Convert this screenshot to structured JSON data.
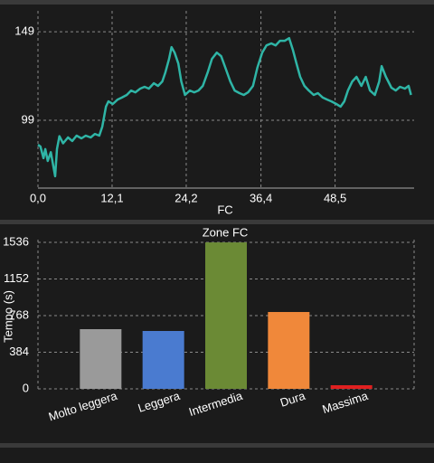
{
  "chart_data": [
    {
      "type": "line",
      "x_label": "FC",
      "series": [
        {
          "color": "#2fb5a6",
          "x": [
            0,
            0.4,
            0.9,
            1.2,
            1.6,
            2.1,
            2.4,
            2.8,
            3.1,
            3.5,
            4.1,
            4.9,
            5.6,
            6.3,
            7.1,
            7.8,
            8.6,
            9.3,
            10.0,
            10.5,
            11.1,
            11.5,
            12.2,
            13.0,
            13.7,
            14.5,
            15.2,
            15.9,
            16.7,
            17.4,
            18.1,
            18.9,
            19.6,
            20.3,
            20.8,
            21.4,
            21.8,
            22.3,
            22.9,
            23.4,
            24.0,
            24.8,
            25.5,
            26.2,
            26.9,
            27.7,
            28.4,
            29.2,
            29.9,
            30.6,
            31.4,
            32.1,
            32.9,
            33.6,
            34.3,
            35.1,
            35.8,
            36.6,
            37.3,
            38.1,
            38.8,
            39.5,
            40.3,
            41.0,
            41.6,
            42.2,
            42.8,
            43.5,
            44.2,
            45.0,
            45.7,
            46.5,
            47.2,
            47.9,
            48.7,
            49.4,
            50.0,
            50.6,
            51.3,
            52.0,
            52.8,
            53.5,
            54.2,
            55.0,
            55.7,
            56.1,
            56.8,
            57.7,
            58.4,
            59.1,
            59.9,
            60.5,
            60.9
          ],
          "values": [
            85.2,
            84.2,
            77.6,
            82.7,
            76,
            81,
            75,
            67.4,
            82.7,
            90,
            86,
            89.3,
            87.3,
            90.3,
            88.8,
            90.3,
            89.3,
            91.3,
            90.3,
            95.4,
            106.7,
            109.7,
            108.2,
            110.7,
            111.8,
            113.3,
            115.8,
            114.8,
            116.9,
            117.9,
            116.9,
            119.9,
            118.4,
            120.9,
            126,
            133.7,
            140.3,
            137.2,
            131.1,
            120.9,
            113.3,
            115.8,
            114.8,
            115.8,
            118.4,
            126,
            133.7,
            137.2,
            135.2,
            128.6,
            120.9,
            115.8,
            114.3,
            113.3,
            114.8,
            118.4,
            128.6,
            137.2,
            141.3,
            142.4,
            141.3,
            143.9,
            143.9,
            145.4,
            138.8,
            131.1,
            123.5,
            118.4,
            115.8,
            113.3,
            114.3,
            111.8,
            110.7,
            109.7,
            108.2,
            106.7,
            109.7,
            115.8,
            120.9,
            123.5,
            118.4,
            123.5,
            115.8,
            113.3,
            120.9,
            129.6,
            123.5,
            117.4,
            115.8,
            117.9,
            116.9,
            118.4,
            113.3
          ]
        }
      ],
      "xlim": [
        0,
        61.4
      ],
      "ylim": [
        60.7,
        160.8
      ],
      "xticks": [
        {
          "value": 0,
          "label": "0,0"
        },
        {
          "value": 12.1,
          "label": "12,1"
        },
        {
          "value": 24.2,
          "label": "24,2"
        },
        {
          "value": 36.4,
          "label": "36,4"
        },
        {
          "value": 48.5,
          "label": "48,5"
        }
      ],
      "yticks": [
        99,
        149
      ],
      "grid": true
    },
    {
      "type": "bar",
      "title": "Zone FC",
      "y_label": "Tempo (s)",
      "categories": [
        "Molto leggera",
        "Leggera",
        "Intermedia",
        "Dura",
        "Massima"
      ],
      "values": [
        626,
        607,
        1536,
        806,
        38
      ],
      "colors": [
        "#9a9a9a",
        "#4a7bd0",
        "#6b8a35",
        "#f0883a",
        "#e02020"
      ],
      "ylim": [
        0,
        1565
      ],
      "yticks": [
        0,
        384,
        768,
        1152,
        1536
      ],
      "grid": true
    }
  ]
}
